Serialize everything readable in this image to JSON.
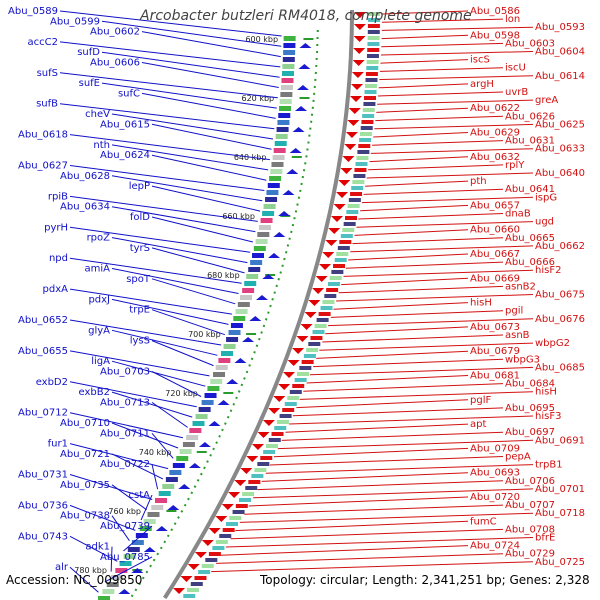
{
  "title": "Arcobacter butzleri RM4018, complete genome",
  "footer": {
    "accession": "Accession: NC_009850",
    "summary": "Topology: circular; Length: 2,341,251 bp; Genes: 2,328"
  },
  "colors": {
    "left_labels": "#1010c8",
    "right_labels": "#d21010",
    "backbone": "#888888",
    "tick_dots": "#2a9a2a"
  },
  "kbp_ticks": [
    "600 kbp",
    "620 kbp",
    "640 kbp",
    "660 kbp",
    "680 kbp",
    "700 kbp",
    "720 kbp",
    "740 kbp",
    "760 kbp",
    "780 kbp"
  ],
  "left_labels": [
    "Abu_0589",
    "Abu_0599",
    "Abu_0602",
    "accC2",
    "sufD",
    "Abu_0606",
    "sufS",
    "sufE",
    "sufC",
    "sufB",
    "cheV",
    "Abu_0615",
    "Abu_0618",
    "nth",
    "Abu_0624",
    "Abu_0627",
    "Abu_0628",
    "lepP",
    "rpiB",
    "Abu_0634",
    "folD",
    "pyrH",
    "rpoZ",
    "tyrS",
    "npd",
    "amiA",
    "spoT",
    "pdxA",
    "pdxJ",
    "trpE",
    "Abu_0652",
    "glyA",
    "lysS",
    "Abu_0655",
    "ligA",
    "Abu_0703",
    "exbD2",
    "exbB2",
    "Abu_0713",
    "Abu_0712",
    "Abu_0710",
    "Abu_0711",
    "fur1",
    "Abu_0721",
    "Abu_0722",
    "Abu_0731",
    "Abu_0735",
    "cstA",
    "Abu_0736",
    "Abu_0738",
    "Abu_0739",
    "Abu_0743",
    "adk1",
    "Abu_0785",
    "alr"
  ],
  "right_labels": [
    "Abu_0586",
    "lon",
    "Abu_0593",
    "Abu_0598",
    "Abu_0603",
    "Abu_0604",
    "iscS",
    "iscU",
    "Abu_0614",
    "argH",
    "uvrB",
    "greA",
    "Abu_0622",
    "Abu_0626",
    "Abu_0625",
    "Abu_0629",
    "Abu_0631",
    "Abu_0633",
    "Abu_0632",
    "rplY",
    "Abu_0640",
    "pth",
    "Abu_0641",
    "ispG",
    "Abu_0657",
    "dnaB",
    "ugd",
    "Abu_0660",
    "Abu_0665",
    "Abu_0662",
    "Abu_0667",
    "Abu_0666",
    "hisF2",
    "Abu_0669",
    "asnB2",
    "Abu_0675",
    "hisH",
    "pgil",
    "Abu_0676",
    "Abu_0673",
    "asnB",
    "wbpG2",
    "Abu_0679",
    "wbpG3",
    "Abu_0685",
    "Abu_0681",
    "Abu_0684",
    "hisH",
    "pglF",
    "Abu_0695",
    "hisF3",
    "apt",
    "Abu_0697",
    "Abu_0691",
    "Abu_0709",
    "pepA",
    "trpB1",
    "Abu_0693",
    "Abu_0706",
    "Abu_0701",
    "Abu_0720",
    "Abu_0707",
    "Abu_0718",
    "fumC",
    "Abu_0708",
    "bfrE",
    "Abu_0724",
    "Abu_0729",
    "Abu_0725"
  ]
}
